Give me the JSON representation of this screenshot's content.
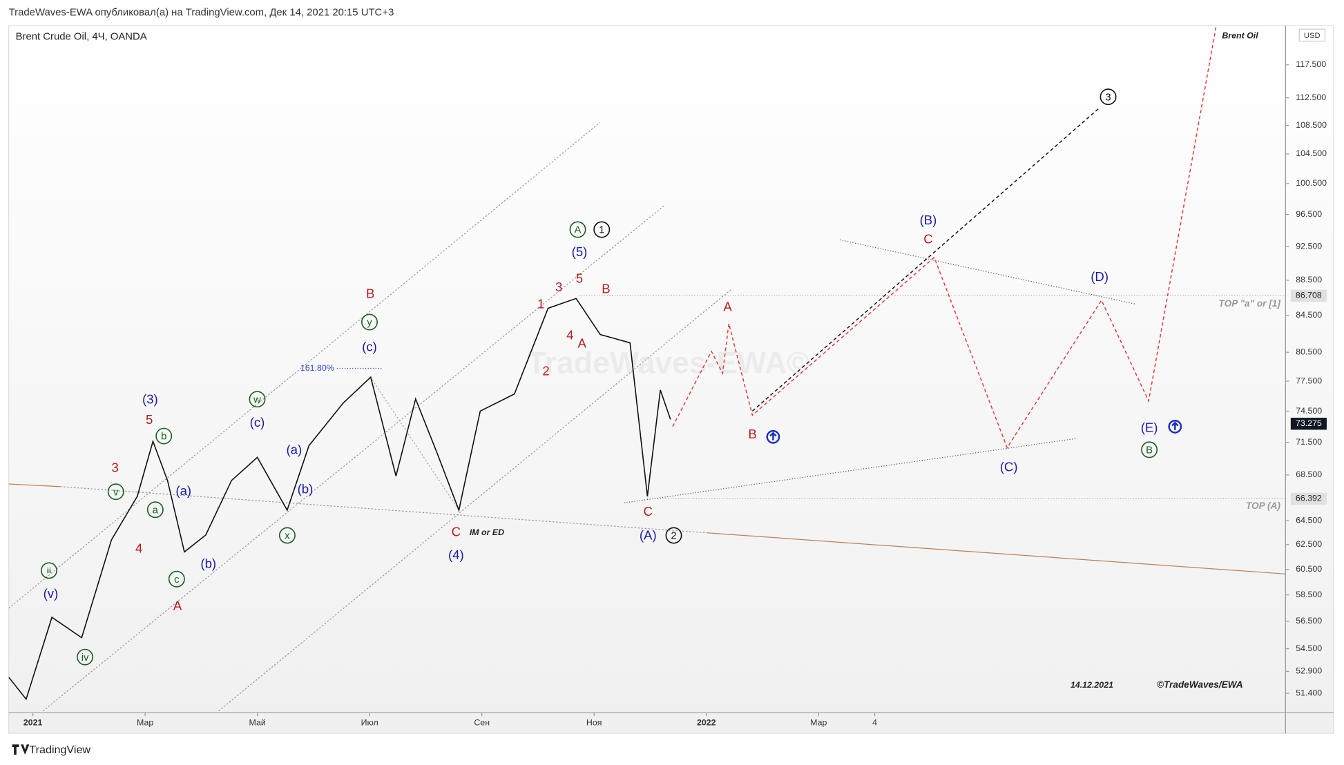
{
  "chart_data": {
    "type": "line",
    "header": "TradeWaves-EWA опубликовал(а) на TradingView.com, Дек 14, 2021 20:15 UTC+3",
    "title": "Brent Crude Oil, 4Ч, OANDA",
    "symbol_label": "Brent Oil",
    "currency": "USD",
    "log_scale": true,
    "xlim": [
      -0.43,
      22.32
    ],
    "xticks": [
      {
        "value": 0,
        "label": "2021"
      },
      {
        "value": 2,
        "label": "Мар"
      },
      {
        "value": 4,
        "label": "Май"
      },
      {
        "value": 6,
        "label": "Июл"
      },
      {
        "value": 8,
        "label": "Сен"
      },
      {
        "value": 10,
        "label": "Ноя"
      },
      {
        "value": 12,
        "label": "2022"
      },
      {
        "value": 14,
        "label": "Мар"
      },
      {
        "value": 15,
        "label": "4"
      }
    ],
    "ylim": [
      50.1,
      123.7
    ],
    "yticks": [
      {
        "value": 117.5,
        "label": "117.500"
      },
      {
        "value": 112.5,
        "label": "112.500"
      },
      {
        "value": 108.5,
        "label": "108.500"
      },
      {
        "value": 104.5,
        "label": "104.500"
      },
      {
        "value": 100.5,
        "label": "100.500"
      },
      {
        "value": 96.5,
        "label": "96.500"
      },
      {
        "value": 92.5,
        "label": "92.500"
      },
      {
        "value": 88.5,
        "label": "88.500"
      },
      {
        "value": 84.5,
        "label": "84.500"
      },
      {
        "value": 80.5,
        "label": "80.500"
      },
      {
        "value": 77.5,
        "label": "77.500"
      },
      {
        "value": 74.5,
        "label": "74.500"
      },
      {
        "value": 71.5,
        "label": "71.500"
      },
      {
        "value": 68.5,
        "label": "68.500"
      },
      {
        "value": 64.5,
        "label": "64.500"
      },
      {
        "value": 62.5,
        "label": "62.500"
      },
      {
        "value": 60.5,
        "label": "60.500"
      },
      {
        "value": 58.5,
        "label": "58.500"
      },
      {
        "value": 56.5,
        "label": "56.500"
      },
      {
        "value": 54.5,
        "label": "54.500"
      },
      {
        "value": 52.9,
        "label": "52.900"
      },
      {
        "value": 51.4,
        "label": "51.400"
      }
    ],
    "series": [
      {
        "color": "#111111",
        "dash": false,
        "x": [
          -0.43,
          -0.12,
          0.34,
          0.87,
          1.4,
          1.86,
          2.14,
          2.4,
          2.7,
          3.08,
          3.54,
          4.0,
          4.53,
          4.92,
          5.53,
          6.02,
          6.47,
          6.82,
          7.21,
          7.59,
          7.97,
          8.58,
          9.18,
          9.68,
          10.11,
          10.64,
          10.95,
          11.18,
          11.36
        ],
        "values": [
          52.5,
          51.0,
          56.8,
          55.3,
          62.9,
          66.6,
          71.6,
          68.0,
          61.9,
          63.3,
          68.0,
          70.1,
          65.4,
          71.2,
          75.3,
          77.9,
          68.4,
          75.7,
          70.4,
          65.4,
          74.5,
          76.2,
          85.3,
          86.4,
          82.4,
          81.5,
          66.6,
          76.6,
          73.7
        ]
      },
      {
        "color": "#e53935",
        "dash": true,
        "x": [
          11.4,
          12.09,
          12.29,
          12.4,
          12.82,
          16.06,
          17.36,
          19.04,
          19.88,
          21.1
        ],
        "values": [
          73.0,
          80.6,
          78.3,
          83.6,
          74.1,
          91.2,
          71.0,
          86.2,
          75.5,
          124.5
        ]
      },
      {
        "color": "#111111",
        "dash": true,
        "x": [
          12.82,
          19.0
        ],
        "values": [
          74.5,
          111.0
        ]
      }
    ],
    "price_markers": [
      86.708,
      73.275,
      66.392
    ],
    "level_labels": [
      "TOP \"a\" or [1]",
      "TOP (A)"
    ],
    "annotations": [
      "(3)",
      "5",
      "3",
      "4",
      "v",
      "b",
      "a",
      "c",
      "(a)",
      "(b)",
      "A",
      "iii",
      "(v)",
      "iv",
      "w",
      "(c)",
      "(a)",
      "(b)",
      "x",
      "B",
      "y",
      "(c)",
      "C",
      "(4)",
      "1",
      "2",
      "3",
      "4",
      "5",
      "A",
      "B",
      "(5)",
      "A",
      "1",
      "C",
      "(A)",
      "2",
      "A",
      "B",
      "(B)",
      "C",
      "(D)",
      "(C)",
      "(E)",
      "B",
      "3"
    ],
    "fib_label": "161.80%",
    "note": "IM or ED",
    "date_stamp": "14.12.2021",
    "copyright": "©TradeWaves/EWA",
    "watermark": "TradeWaves-EWA©",
    "footer": "TradingView"
  }
}
